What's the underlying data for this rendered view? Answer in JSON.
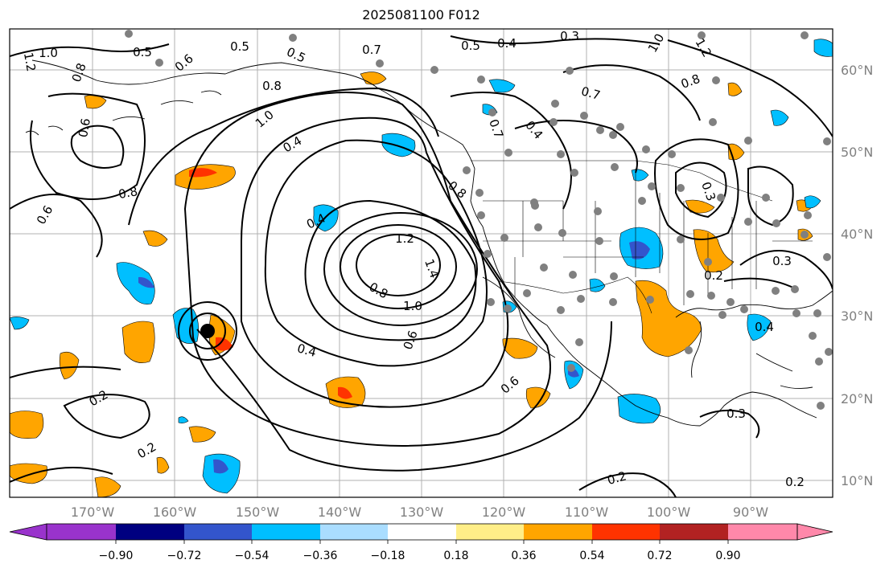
{
  "title": "2025081100 F012",
  "lon_labels": [
    "170°W",
    "160°W",
    "150°W",
    "140°W",
    "130°W",
    "120°W",
    "110°W",
    "100°W",
    "90°W"
  ],
  "lat_labels": [
    "60°N",
    "50°N",
    "40°N",
    "30°N",
    "20°N",
    "10°N"
  ],
  "map_extent": {
    "lon": [
      -180,
      -80
    ],
    "lat": [
      8,
      65
    ]
  },
  "gridlines": true,
  "colorbar": {
    "orientation": "horizontal",
    "extend": "both",
    "tick_labels": [
      "−0.90",
      "−0.72",
      "−0.54",
      "−0.36",
      "−0.18",
      "0.18",
      "0.36",
      "0.54",
      "0.72",
      "0.90"
    ],
    "colors": [
      "#9933cc",
      "#000080",
      "#3355cc",
      "#00bfff",
      "#aaddff",
      "#ffffff",
      "#ffee88",
      "#ffa500",
      "#ff3300",
      "#b22222",
      "#ff88aa"
    ]
  },
  "contour_labels": [
    "1.0",
    "1.2",
    "0.8",
    "0.5",
    "0.6",
    "0.5",
    "0.5",
    "0.7",
    "0.5",
    "0.4",
    "0.3",
    "1.0",
    "1.2",
    "0.8",
    "0.6",
    "0.8",
    "0.6",
    "0.7",
    "0.8",
    "0.4",
    "1.0",
    "0.4",
    "0.8",
    "0.7",
    "0.4",
    "1.2",
    "1.4",
    "0.8",
    "1.0",
    "0.6",
    "0.4",
    "0.2",
    "0.2",
    "0.6",
    "0.2",
    "0.3",
    "0.2",
    "0.3",
    "0.4",
    "0.3",
    "0.2"
  ],
  "marker": "black-dot-center"
}
